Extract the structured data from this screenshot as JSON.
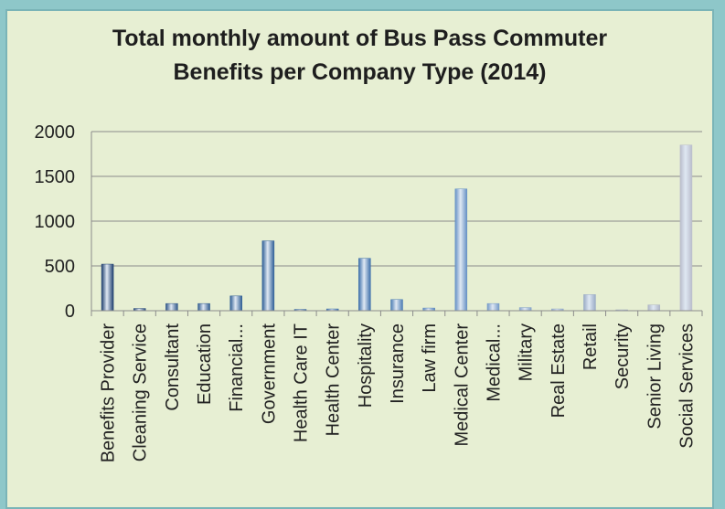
{
  "chart_data": {
    "type": "bar",
    "title_line1": "Total monthly amount of Bus Pass Commuter",
    "title_line2": "Benefits per Company Type (2014)",
    "xlabel": "",
    "ylabel": "",
    "ylim": [
      0,
      2000
    ],
    "yticks": [
      "0",
      "500",
      "1000",
      "1500",
      "2000"
    ],
    "grid": true,
    "legend": "none",
    "categories": [
      "Benefits Provider",
      "Cleaning Service",
      "Consultant",
      "Education",
      "Financial...",
      "Government",
      "Health Care IT",
      "Health Center",
      "Hospitality",
      "Insurance",
      "Law firm",
      "Medical Center",
      "Medical...",
      "Military",
      "Real Estate",
      "Retail",
      "Security",
      "Senior Living",
      "Social Services"
    ],
    "values": [
      520,
      25,
      80,
      80,
      165,
      780,
      15,
      20,
      585,
      125,
      30,
      1360,
      80,
      35,
      20,
      180,
      5,
      65,
      1850
    ],
    "bar_colors": [
      "#1f3f6e",
      "#284a7a",
      "#2e5587",
      "#2f5a8e",
      "#2f5d93",
      "#2f5f97",
      "#3a6aa3",
      "#3d6fa9",
      "#3d6faa",
      "#4a7bb3",
      "#5a87bd",
      "#6590c4",
      "#7399c7",
      "#85a3c9",
      "#90a8c9",
      "#9aabc5",
      "#a4b0c4",
      "#aeb5c5",
      "#b9bccb"
    ]
  }
}
